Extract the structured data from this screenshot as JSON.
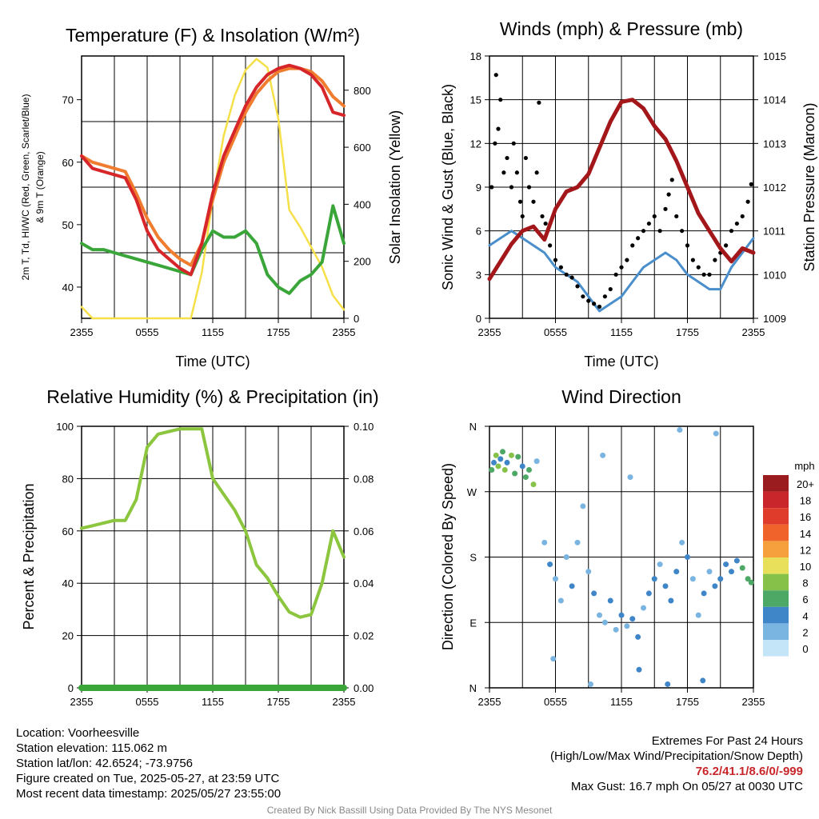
{
  "chart_data": [
    {
      "type": "line",
      "title": "Temperature (F) & Insolation (W/m²)",
      "xlabel": "Time (UTC)",
      "ylabel_left": [
        "2m T, Td, HI/WC (Red, Green, Scarlet/Blue)",
        "& 9m T (Orange)"
      ],
      "ylabel_right": "Solar Insolation (Yellow)",
      "x_ticks": [
        "2355",
        "0555",
        "1155",
        "1755",
        "2355"
      ],
      "y_left_ticks": [
        "40",
        "50",
        "60",
        "70"
      ],
      "y_right_ticks": [
        "0",
        "200",
        "400",
        "600",
        "800"
      ],
      "ylim_left": [
        35,
        77
      ],
      "ylim_right": [
        0,
        920
      ],
      "x_hours": [
        0,
        1,
        2,
        3,
        4,
        5,
        6,
        7,
        8,
        9,
        10,
        11,
        12,
        13,
        14,
        15,
        16,
        17,
        18,
        19,
        20,
        21,
        22,
        23,
        24
      ],
      "series": [
        {
          "color": "#d7262a",
          "axis": "left",
          "values": [
            61,
            59,
            58.5,
            58,
            57.5,
            54,
            49,
            46,
            44.5,
            43,
            42,
            47,
            55,
            61,
            65,
            69,
            72,
            74,
            75,
            75.5,
            75,
            74,
            72,
            68,
            67.5
          ]
        },
        {
          "color": "#f07c30",
          "axis": "left",
          "values": [
            61,
            60,
            59.5,
            59,
            58.5,
            55,
            51,
            48,
            46,
            44.5,
            43.5,
            47,
            54,
            60,
            64,
            68,
            71,
            73,
            74.5,
            75,
            75,
            74.5,
            73,
            70.5,
            69
          ]
        },
        {
          "color": "#3aa63a",
          "axis": "left",
          "values": [
            47,
            46,
            46,
            45.5,
            45,
            44.5,
            44,
            43.5,
            43,
            42.5,
            42,
            46,
            49,
            48,
            48,
            49,
            47,
            42,
            40,
            39,
            41,
            42,
            44,
            53,
            47
          ]
        },
        {
          "color": "#f5e04a",
          "axis": "right",
          "values": [
            40,
            0,
            0,
            0,
            0,
            0,
            0,
            0,
            0,
            0,
            0,
            160,
            420,
            640,
            780,
            870,
            910,
            880,
            700,
            380,
            320,
            250,
            180,
            80,
            30
          ]
        }
      ]
    },
    {
      "type": "line",
      "title": "Winds (mph) & Pressure (mb)",
      "xlabel": "Time (UTC)",
      "ylabel_left": "Sonic Wind & Gust (Blue, Black)",
      "ylabel_right": "Station Pressure (Maroon)",
      "x_ticks": [
        "2355",
        "0555",
        "1155",
        "1755",
        "2355"
      ],
      "y_left_ticks": [
        "0",
        "3",
        "6",
        "9",
        "12",
        "15",
        "18"
      ],
      "y_right_ticks": [
        "1009",
        "1010",
        "1011",
        "1012",
        "1013",
        "1014",
        "1015"
      ],
      "ylim_left": [
        0,
        18
      ],
      "ylim_right": [
        1009,
        1015
      ],
      "x_hours": [
        0,
        1,
        2,
        3,
        4,
        5,
        6,
        7,
        8,
        9,
        10,
        11,
        12,
        13,
        14,
        15,
        16,
        17,
        18,
        19,
        20,
        21,
        22,
        23,
        24
      ],
      "series": [
        {
          "color": "#4a8fcb",
          "axis": "left",
          "values": [
            5,
            5.5,
            6,
            5.5,
            5,
            4.5,
            3.5,
            3,
            2.5,
            1.5,
            0.5,
            1,
            1.5,
            2.5,
            3.5,
            4,
            4.5,
            4,
            3,
            2.5,
            2,
            2,
            3.5,
            4.5,
            5.5
          ]
        },
        {
          "color": "#a3171b",
          "axis": "right",
          "values": [
            1009.9,
            1010.3,
            1010.7,
            1011,
            1011.1,
            1010.8,
            1011.5,
            1011.9,
            1012,
            1012.3,
            1012.9,
            1013.5,
            1013.95,
            1014,
            1013.8,
            1013.4,
            1013.1,
            1012.6,
            1012,
            1011.4,
            1011,
            1010.6,
            1010.3,
            1010.6,
            1010.5
          ]
        }
      ],
      "gust_points": [
        [
          0.2,
          9
        ],
        [
          0.5,
          12
        ],
        [
          0.6,
          16.7
        ],
        [
          0.8,
          13
        ],
        [
          1,
          15
        ],
        [
          1.3,
          10
        ],
        [
          1.6,
          11
        ],
        [
          2,
          9
        ],
        [
          2.2,
          12
        ],
        [
          2.5,
          10
        ],
        [
          2.8,
          8
        ],
        [
          3,
          7
        ],
        [
          3.3,
          11
        ],
        [
          3.6,
          9
        ],
        [
          4,
          8
        ],
        [
          4.3,
          10
        ],
        [
          4.5,
          14.8
        ],
        [
          4.8,
          7
        ],
        [
          5.1,
          6.5
        ],
        [
          5.5,
          5
        ],
        [
          6,
          4
        ],
        [
          6.5,
          3.5
        ],
        [
          7,
          3
        ],
        [
          7.5,
          2.8
        ],
        [
          8,
          2.2
        ],
        [
          8.5,
          1.5
        ],
        [
          9,
          1.2
        ],
        [
          9.5,
          1
        ],
        [
          10,
          0.8
        ],
        [
          10.5,
          1.5
        ],
        [
          11,
          2
        ],
        [
          11.5,
          3
        ],
        [
          12,
          3.5
        ],
        [
          12.5,
          4
        ],
        [
          13,
          5
        ],
        [
          13.5,
          5.5
        ],
        [
          14,
          6
        ],
        [
          14.5,
          6.5
        ],
        [
          15,
          7
        ],
        [
          15.5,
          6
        ],
        [
          16,
          7.5
        ],
        [
          16.3,
          8.5
        ],
        [
          16.6,
          9.5
        ],
        [
          17,
          7
        ],
        [
          17.5,
          6
        ],
        [
          18,
          5
        ],
        [
          18.5,
          4
        ],
        [
          19,
          3.5
        ],
        [
          19.5,
          3
        ],
        [
          20,
          3
        ],
        [
          20.5,
          4
        ],
        [
          21,
          4.5
        ],
        [
          21.5,
          5
        ],
        [
          22,
          6
        ],
        [
          22.5,
          6.5
        ],
        [
          23,
          7
        ],
        [
          23.5,
          8
        ],
        [
          23.8,
          9.2
        ]
      ]
    },
    {
      "type": "line",
      "title": "Relative Humidity (%) & Precipitation (in)",
      "xlabel": "",
      "ylabel": "Percent & Precipitation",
      "x_ticks": [
        "2355",
        "0555",
        "1155",
        "1755",
        "2355"
      ],
      "y_left_ticks": [
        "0",
        "20",
        "40",
        "60",
        "80",
        "100"
      ],
      "y_right_ticks": [
        "0.00",
        "0.02",
        "0.04",
        "0.06",
        "0.08",
        "0.10"
      ],
      "ylim_left": [
        0,
        100
      ],
      "ylim_right": [
        0,
        0.1
      ],
      "x_hours": [
        0,
        1,
        2,
        3,
        4,
        5,
        6,
        7,
        8,
        9,
        10,
        11,
        12,
        13,
        14,
        15,
        16,
        17,
        18,
        19,
        20,
        21,
        22,
        23,
        24
      ],
      "series": [
        {
          "color": "#8cc63f",
          "axis": "left",
          "values": [
            61,
            62,
            63,
            64,
            64,
            72,
            92,
            97,
            98,
            99,
            99,
            99,
            80,
            74,
            68,
            60,
            47,
            42,
            35,
            29,
            27,
            28,
            40,
            60,
            50
          ]
        },
        {
          "color": "#3aa63a",
          "axis": "right",
          "values": [
            0,
            0,
            0,
            0,
            0,
            0,
            0,
            0,
            0,
            0,
            0,
            0,
            0,
            0,
            0,
            0,
            0,
            0,
            0,
            0,
            0,
            0,
            0,
            0,
            0
          ]
        }
      ]
    },
    {
      "type": "scatter",
      "title": "Wind Direction",
      "ylabel": "Direction (Colored By Speed)",
      "x_ticks": [
        "2355",
        "0555",
        "1155",
        "1755",
        "2355"
      ],
      "y_ticks": [
        "N",
        "E",
        "S",
        "W",
        "N"
      ],
      "ylim": [
        0,
        360
      ],
      "legend_title": "mph",
      "legend_labels": [
        "20+",
        "18",
        "16",
        "14",
        "12",
        "10",
        "8",
        "6",
        "4",
        "2",
        "0"
      ],
      "legend_colors": [
        "#9b1c1f",
        "#c8262a",
        "#e03c2c",
        "#f0642c",
        "#f5a03c",
        "#e8df5a",
        "#86c24a",
        "#4da866",
        "#3f86c8",
        "#7ab4e0",
        "#c4e4f7"
      ],
      "points": [
        [
          0.2,
          300,
          6
        ],
        [
          0.4,
          310,
          4
        ],
        [
          0.6,
          320,
          8
        ],
        [
          0.8,
          305,
          7
        ],
        [
          1.0,
          315,
          4
        ],
        [
          1.2,
          325,
          6
        ],
        [
          1.4,
          300,
          8
        ],
        [
          1.6,
          310,
          3
        ],
        [
          2.0,
          320,
          7
        ],
        [
          2.3,
          295,
          5
        ],
        [
          2.6,
          318,
          6
        ],
        [
          3.0,
          305,
          4
        ],
        [
          3.3,
          290,
          6
        ],
        [
          3.6,
          300,
          5
        ],
        [
          4.0,
          280,
          7
        ],
        [
          4.3,
          312,
          2
        ],
        [
          5.0,
          200,
          2
        ],
        [
          5.5,
          170,
          3
        ],
        [
          6.0,
          150,
          1
        ],
        [
          6.5,
          120,
          2
        ],
        [
          7.0,
          180,
          1
        ],
        [
          7.5,
          140,
          3
        ],
        [
          8.0,
          200,
          1
        ],
        [
          8.5,
          250,
          1
        ],
        [
          9.0,
          160,
          2
        ],
        [
          9.5,
          130,
          3
        ],
        [
          10.0,
          100,
          1
        ],
        [
          10.5,
          90,
          2
        ],
        [
          11.0,
          120,
          3
        ],
        [
          11.5,
          80,
          1
        ],
        [
          12.0,
          100,
          4
        ],
        [
          12.5,
          85,
          2
        ],
        [
          13.0,
          95,
          3
        ],
        [
          13.5,
          70,
          4
        ],
        [
          14.0,
          110,
          2
        ],
        [
          14.5,
          130,
          3
        ],
        [
          15.0,
          150,
          4
        ],
        [
          15.5,
          170,
          2
        ],
        [
          16.0,
          140,
          3
        ],
        [
          16.5,
          120,
          4
        ],
        [
          17.0,
          160,
          3
        ],
        [
          17.5,
          200,
          2
        ],
        [
          18.0,
          180,
          3
        ],
        [
          18.5,
          150,
          2
        ],
        [
          19.0,
          100,
          1
        ],
        [
          19.5,
          130,
          3
        ],
        [
          20.0,
          160,
          2
        ],
        [
          20.5,
          140,
          4
        ],
        [
          21.0,
          150,
          3
        ],
        [
          21.5,
          170,
          4
        ],
        [
          22.0,
          160,
          3
        ],
        [
          22.5,
          175,
          4
        ],
        [
          23.0,
          165,
          5
        ],
        [
          23.5,
          150,
          6
        ],
        [
          23.8,
          145,
          6
        ],
        [
          5.8,
          40,
          2
        ],
        [
          9.2,
          5,
          2
        ],
        [
          13.6,
          25,
          4
        ],
        [
          16.2,
          5,
          4
        ],
        [
          17.3,
          355,
          1
        ],
        [
          19.4,
          10,
          3
        ],
        [
          20.6,
          350,
          1
        ],
        [
          10.3,
          320,
          1
        ],
        [
          12.8,
          290,
          2
        ]
      ]
    }
  ],
  "footer_left": {
    "location": "Location: Voorheesville",
    "elevation": "Station elevation: 115.062 m",
    "latlon": "Station lat/lon: 42.6524; -73.9756",
    "created": "Figure created on Tue, 2025-05-27, at 23:59 UTC",
    "recent": "Most recent data timestamp: 2025/05/27 23:55:00"
  },
  "footer_right": {
    "title": "Extremes For Past 24 Hours",
    "subtitle": "(High/Low/Max Wind/Precipitation/Snow Depth)",
    "values": "76.2/41.1/8.6/0/-999",
    "gust": "Max Gust: 16.7 mph On 05/27 at 0030 UTC"
  },
  "credit": "Created By Nick Bassill Using Data Provided By The NYS Mesonet"
}
